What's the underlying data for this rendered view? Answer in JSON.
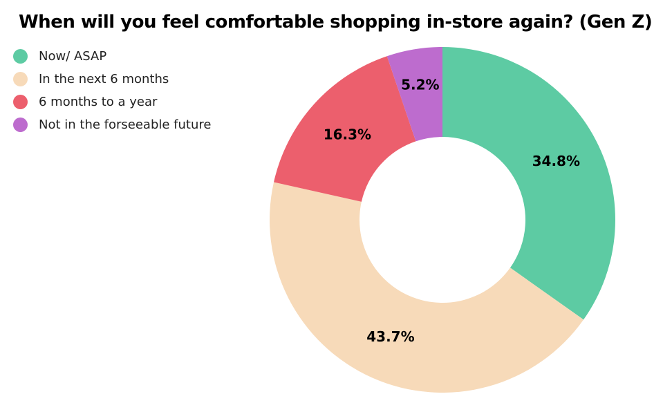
{
  "title": "When will you feel comfortable shopping in-store again? (Gen Z)",
  "chart_data": {
    "type": "pie",
    "subtype": "donut",
    "title": "When will you feel comfortable shopping in-store again? (Gen Z)",
    "labels": [
      "Now/ ASAP",
      "In the next 6 months",
      "6 months to a year",
      "Not in the forseeable future"
    ],
    "values": [
      34.8,
      43.7,
      16.3,
      5.2
    ],
    "value_labels": [
      "34.8%",
      "43.7%",
      "16.3%",
      "5.2%"
    ],
    "colors": [
      "#5DCBA3",
      "#F7DAB9",
      "#EC5F6D",
      "#BD6CCE"
    ],
    "hole_ratio": 0.48,
    "start_angle_deg": 0,
    "direction": "clockwise",
    "label_position": "inside",
    "label_color": "#000000",
    "legend_position": "top-left",
    "background": "#ffffff"
  },
  "legend": {
    "items": [
      {
        "label": "Now/ ASAP",
        "color": "#5DCBA3"
      },
      {
        "label": "In the next 6 months",
        "color": "#F7DAB9"
      },
      {
        "label": "6 months to a year",
        "color": "#EC5F6D"
      },
      {
        "label": "Not in the forseeable future",
        "color": "#BD6CCE"
      }
    ]
  }
}
